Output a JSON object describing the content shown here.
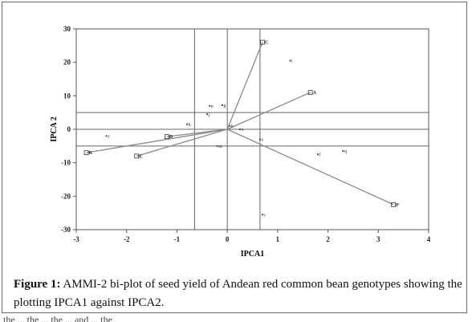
{
  "caption": {
    "label": "Figure 1:",
    "text": "AMMI-2 bi-plot of seed yield of Andean red common bean genotypes showing the plotting IPCA1 against IPCA2."
  },
  "footer": {
    "text": "the ... the ... the ... and ... the"
  },
  "chart_data": {
    "type": "scatter",
    "title": "",
    "xlabel": "IPCA1",
    "ylabel": "IPCA 2",
    "xlim": [
      -3,
      4
    ],
    "ylim": [
      -30,
      30
    ],
    "xticks": [
      "-3",
      "-2",
      "-1",
      "0",
      "1",
      "2",
      "3",
      "4"
    ],
    "yticks": [
      "30",
      "20",
      "10",
      "0",
      "-10",
      "-20",
      "-30"
    ],
    "grid": false,
    "reference_lines": {
      "vertical_x": [
        -0.65,
        0,
        0.65
      ],
      "horizontal_y": [
        5,
        0,
        -5
      ]
    },
    "environment_vectors": [
      {
        "label": "C",
        "x": 0.7,
        "y": 26
      },
      {
        "label": "A",
        "x": 1.65,
        "y": 11
      },
      {
        "label": "P",
        "x": 3.3,
        "y": -22.5
      },
      {
        "label": "K",
        "x": -2.8,
        "y": -7
      },
      {
        "label": "E",
        "x": -1.8,
        "y": -8
      },
      {
        "label": "D",
        "x": -1.2,
        "y": -2.2
      }
    ],
    "genotype_points": [
      {
        "label": "i",
        "x": 1.25,
        "y": 20.5
      },
      {
        "label": "n",
        "x": -0.35,
        "y": 7
      },
      {
        "label": "g",
        "x": -0.1,
        "y": 7.2
      },
      {
        "label": "j",
        "x": -0.4,
        "y": 4.5
      },
      {
        "label": "h",
        "x": -0.8,
        "y": 1.5
      },
      {
        "label": "b",
        "x": 0.05,
        "y": 1
      },
      {
        "label": "o",
        "x": 0.25,
        "y": 0
      },
      {
        "label": "z",
        "x": -2.4,
        "y": -2
      },
      {
        "label": "a",
        "x": 0.65,
        "y": -3
      },
      {
        "label": "m",
        "x": -0.2,
        "y": -5
      },
      {
        "label": "f",
        "x": 1.8,
        "y": -7.5
      },
      {
        "label": "q",
        "x": 2.3,
        "y": -6.5
      },
      {
        "label": "s",
        "x": 0.7,
        "y": -25.5
      }
    ]
  }
}
